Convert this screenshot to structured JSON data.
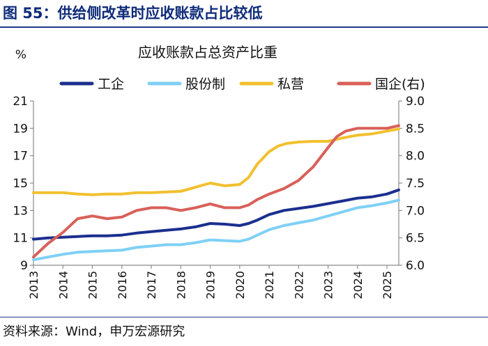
{
  "figure_title": "图 55：供给侧改革时应收账款占比较低",
  "source": "资料来源：Wind，申万宏源研究",
  "chart_data": {
    "type": "line",
    "title": "应收账款占总资产比重",
    "ylabel_left": "%",
    "ylabel_right": "",
    "xlabel": "",
    "x_range": [
      2013.0,
      2025.4
    ],
    "x_ticks": [
      "2013",
      "2014",
      "2015",
      "2016",
      "2017",
      "2018",
      "2019",
      "2020",
      "2021",
      "2022",
      "2023",
      "2024",
      "2025"
    ],
    "y_left": {
      "range": [
        9,
        21
      ],
      "ticks": [
        "9",
        "11",
        "13",
        "15",
        "17",
        "19",
        "21"
      ]
    },
    "y_right": {
      "range": [
        6.0,
        9.0
      ],
      "ticks": [
        "6.0",
        "6.5",
        "7.0",
        "7.5",
        "8.0",
        "8.5",
        "9.0"
      ]
    },
    "legend_position": "top",
    "series": [
      {
        "name": "工企",
        "axis": "left",
        "color": "#1b2f8f",
        "x": [
          2013.0,
          2013.5,
          2014.0,
          2014.5,
          2015.0,
          2015.5,
          2016.0,
          2016.5,
          2017.0,
          2017.5,
          2018.0,
          2018.5,
          2019.0,
          2019.5,
          2020.0,
          2020.3,
          2020.6,
          2021.0,
          2021.5,
          2022.0,
          2022.5,
          2023.0,
          2023.5,
          2024.0,
          2024.5,
          2025.0,
          2025.4
        ],
        "y": [
          10.9,
          11.0,
          11.05,
          11.1,
          11.15,
          11.15,
          11.2,
          11.35,
          11.45,
          11.55,
          11.65,
          11.8,
          12.05,
          12.0,
          11.9,
          12.05,
          12.3,
          12.7,
          13.0,
          13.15,
          13.3,
          13.5,
          13.7,
          13.9,
          14.0,
          14.2,
          14.5
        ]
      },
      {
        "name": "股份制",
        "axis": "left",
        "color": "#7fd0f5",
        "x": [
          2013.0,
          2013.5,
          2014.0,
          2014.5,
          2015.0,
          2015.5,
          2016.0,
          2016.5,
          2017.0,
          2017.5,
          2018.0,
          2018.5,
          2019.0,
          2019.5,
          2020.0,
          2020.3,
          2020.6,
          2021.0,
          2021.5,
          2022.0,
          2022.5,
          2023.0,
          2023.5,
          2024.0,
          2024.5,
          2025.0,
          2025.4
        ],
        "y": [
          9.4,
          9.6,
          9.8,
          9.95,
          10.0,
          10.05,
          10.1,
          10.3,
          10.4,
          10.5,
          10.5,
          10.65,
          10.85,
          10.8,
          10.75,
          10.9,
          11.2,
          11.6,
          11.9,
          12.1,
          12.3,
          12.6,
          12.9,
          13.2,
          13.35,
          13.55,
          13.75
        ]
      },
      {
        "name": "私营",
        "axis": "left",
        "color": "#f2c02f",
        "x": [
          2013.0,
          2013.5,
          2014.0,
          2014.5,
          2015.0,
          2015.5,
          2016.0,
          2016.5,
          2017.0,
          2017.5,
          2018.0,
          2018.5,
          2019.0,
          2019.5,
          2020.0,
          2020.3,
          2020.6,
          2021.0,
          2021.3,
          2021.6,
          2022.0,
          2022.5,
          2023.0,
          2023.5,
          2024.0,
          2024.5,
          2025.0,
          2025.4
        ],
        "y": [
          14.3,
          14.3,
          14.3,
          14.2,
          14.15,
          14.2,
          14.2,
          14.3,
          14.3,
          14.35,
          14.4,
          14.7,
          15.0,
          14.8,
          14.9,
          15.4,
          16.4,
          17.3,
          17.7,
          17.9,
          18.0,
          18.05,
          18.05,
          18.3,
          18.5,
          18.6,
          18.8,
          18.95
        ]
      },
      {
        "name": "国企(右)",
        "axis": "right",
        "color": "#d9605a",
        "x": [
          2013.0,
          2013.5,
          2014.0,
          2014.5,
          2015.0,
          2015.5,
          2016.0,
          2016.5,
          2017.0,
          2017.5,
          2018.0,
          2018.5,
          2019.0,
          2019.5,
          2020.0,
          2020.3,
          2020.6,
          2021.0,
          2021.5,
          2022.0,
          2022.5,
          2023.0,
          2023.3,
          2023.6,
          2024.0,
          2024.5,
          2025.0,
          2025.4
        ],
        "y": [
          6.15,
          6.4,
          6.6,
          6.85,
          6.9,
          6.85,
          6.88,
          7.0,
          7.05,
          7.05,
          7.0,
          7.05,
          7.12,
          7.05,
          7.05,
          7.1,
          7.2,
          7.3,
          7.4,
          7.55,
          7.8,
          8.15,
          8.35,
          8.45,
          8.5,
          8.5,
          8.5,
          8.55
        ]
      }
    ]
  }
}
